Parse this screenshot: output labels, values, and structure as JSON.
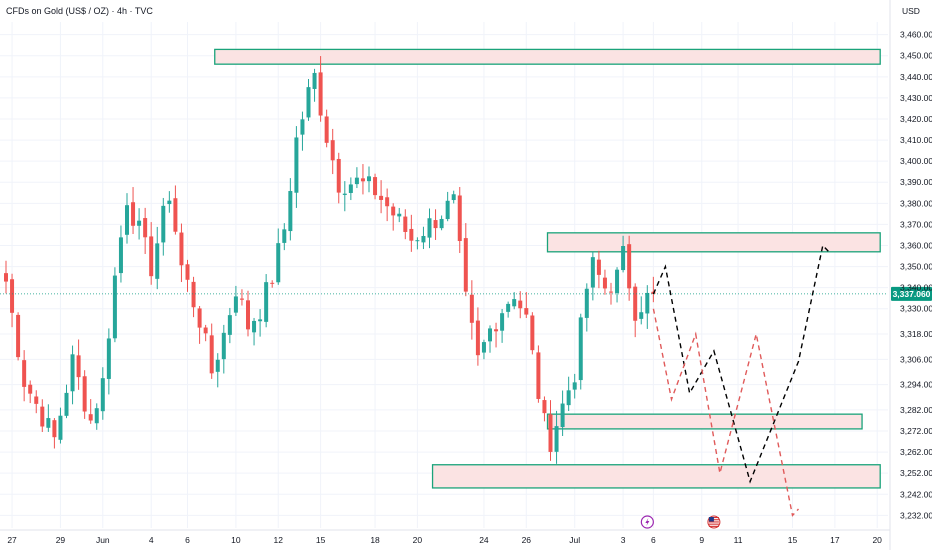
{
  "header": {
    "title": "CFDs on Gold (US$ / OZ) · 4h · TVC",
    "currency": "USD"
  },
  "colors": {
    "up": "#26a69a",
    "down": "#ef5350",
    "zone_fill": "#fbe3e3",
    "zone_border": "#1aa37a",
    "path_black": "#000000",
    "path_red": "#e05a5a",
    "last_price_bg": "#089981"
  },
  "events": [
    {
      "icon": "lightning-icon",
      "date": "Jul 6"
    },
    {
      "icon": "us-flag-icon",
      "date": "Jul 10"
    }
  ],
  "chart_data": {
    "type": "candlestick",
    "title": "CFDs on Gold (US$ / OZ) · 4h · TVC",
    "ylabel": "USD",
    "ylim": [
      3226,
      3466
    ],
    "x_start_index": 0,
    "x_end_index": 144,
    "price_ticks": [
      3460,
      3450,
      3440,
      3430,
      3420,
      3410,
      3400,
      3390,
      3380,
      3370,
      3360,
      3350,
      3340,
      3330,
      3318,
      3306,
      3294,
      3282,
      3272,
      3262,
      3252,
      3242,
      3232
    ],
    "date_ticks": [
      {
        "label": "27",
        "i": 1
      },
      {
        "label": "29",
        "i": 9
      },
      {
        "label": "Jun",
        "i": 16
      },
      {
        "label": "4",
        "i": 24
      },
      {
        "label": "6",
        "i": 30
      },
      {
        "label": "10",
        "i": 38
      },
      {
        "label": "12",
        "i": 45
      },
      {
        "label": "15",
        "i": 52
      },
      {
        "label": "18",
        "i": 61
      },
      {
        "label": "20",
        "i": 68
      },
      {
        "label": "24",
        "i": 79
      },
      {
        "label": "26",
        "i": 86
      },
      {
        "label": "Jul",
        "i": 94
      },
      {
        "label": "3",
        "i": 102
      },
      {
        "label": "6",
        "i": 107
      },
      {
        "label": "9",
        "i": 115
      },
      {
        "label": "11",
        "i": 121
      },
      {
        "label": "15",
        "i": 130
      },
      {
        "label": "17",
        "i": 137
      },
      {
        "label": "20",
        "i": 144
      }
    ],
    "last_price": 3337.06,
    "last_price_label": "3,337.060",
    "key_points": [
      {
        "i": 0,
        "close": 3343
      },
      {
        "i": 3,
        "close": 3296
      },
      {
        "i": 8,
        "close": 3268
      },
      {
        "i": 11,
        "close": 3305
      },
      {
        "i": 14,
        "close": 3277
      },
      {
        "i": 16,
        "close": 3295
      },
      {
        "i": 18,
        "close": 3345
      },
      {
        "i": 20,
        "close": 3383
      },
      {
        "i": 24,
        "close": 3350
      },
      {
        "i": 27,
        "close": 3385
      },
      {
        "i": 29,
        "close": 3350
      },
      {
        "i": 32,
        "close": 3325
      },
      {
        "i": 34,
        "close": 3300
      },
      {
        "i": 36,
        "close": 3318
      },
      {
        "i": 38,
        "close": 3340
      },
      {
        "i": 40,
        "close": 3322
      },
      {
        "i": 42,
        "close": 3330
      },
      {
        "i": 44,
        "close": 3345
      },
      {
        "i": 46,
        "close": 3368
      },
      {
        "i": 48,
        "close": 3410
      },
      {
        "i": 50,
        "close": 3432
      },
      {
        "i": 51,
        "close": 3440
      },
      {
        "i": 53,
        "close": 3412
      },
      {
        "i": 55,
        "close": 3390
      },
      {
        "i": 58,
        "close": 3390
      },
      {
        "i": 61,
        "close": 3386
      },
      {
        "i": 64,
        "close": 3375
      },
      {
        "i": 67,
        "close": 3363
      },
      {
        "i": 70,
        "close": 3370
      },
      {
        "i": 73,
        "close": 3378
      },
      {
        "i": 74,
        "close": 3380
      },
      {
        "i": 76,
        "close": 3333
      },
      {
        "i": 78,
        "close": 3305
      },
      {
        "i": 80,
        "close": 3320
      },
      {
        "i": 82,
        "close": 3330
      },
      {
        "i": 84,
        "close": 3338
      },
      {
        "i": 86,
        "close": 3325
      },
      {
        "i": 88,
        "close": 3290
      },
      {
        "i": 89,
        "close": 3275
      },
      {
        "i": 90,
        "close": 3268
      },
      {
        "i": 92,
        "close": 3284
      },
      {
        "i": 94,
        "close": 3300
      },
      {
        "i": 96,
        "close": 3340
      },
      {
        "i": 97,
        "close": 3350
      },
      {
        "i": 99,
        "close": 3340
      },
      {
        "i": 101,
        "close": 3345
      },
      {
        "i": 102,
        "close": 3355
      },
      {
        "i": 104,
        "close": 3330
      },
      {
        "i": 106,
        "close": 3335
      },
      {
        "i": 107,
        "close": 3337
      }
    ],
    "zones": [
      {
        "name": "top-resistance-zone",
        "i_start": 35,
        "i_end": 144,
        "y_top": 3453,
        "y_bottom": 3446
      },
      {
        "name": "upper-resistance-zone",
        "i_start": 90,
        "i_end": 144,
        "y_top": 3366,
        "y_bottom": 3357
      },
      {
        "name": "middle-support-zone",
        "i_start": 90,
        "i_end": 141,
        "y_top": 3280,
        "y_bottom": 3273
      },
      {
        "name": "lower-support-zone",
        "i_start": 71,
        "i_end": 144,
        "y_top": 3256,
        "y_bottom": 3245
      }
    ],
    "projections": [
      {
        "name": "bullish-projection-path",
        "style": "black-dashed",
        "points": [
          [
            107,
            3337
          ],
          [
            109,
            3350
          ],
          [
            113,
            3290
          ],
          [
            117,
            3310
          ],
          [
            123,
            3248
          ],
          [
            131,
            3305
          ],
          [
            135,
            3360
          ],
          [
            136,
            3357
          ]
        ]
      },
      {
        "name": "bearish-projection-path",
        "style": "red-dashed",
        "points": [
          [
            107,
            3330
          ],
          [
            110,
            3287
          ],
          [
            114,
            3318
          ],
          [
            118,
            3252
          ],
          [
            124,
            3318
          ],
          [
            130,
            3232
          ],
          [
            131,
            3235
          ]
        ]
      }
    ]
  }
}
